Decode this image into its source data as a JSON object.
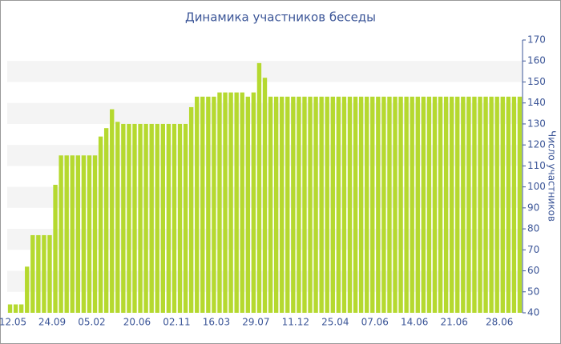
{
  "chart_data": {
    "type": "bar",
    "title": "Динамика участников беседы",
    "y_axis_label": "Число участников",
    "color": "#b5d92f",
    "band_color": "#f4f4f4",
    "ylim": [
      40,
      170
    ],
    "yticks": [
      40,
      50,
      60,
      70,
      80,
      90,
      100,
      110,
      120,
      130,
      140,
      150,
      160,
      170
    ],
    "categories": [
      "12.05",
      null,
      null,
      null,
      null,
      null,
      null,
      "24.09",
      null,
      null,
      null,
      null,
      null,
      null,
      "05.02",
      null,
      null,
      null,
      null,
      null,
      null,
      null,
      "20.06",
      null,
      null,
      null,
      null,
      null,
      null,
      "02.11",
      null,
      null,
      null,
      null,
      null,
      null,
      "16.03",
      null,
      null,
      null,
      null,
      null,
      null,
      "29.07",
      null,
      null,
      null,
      null,
      null,
      null,
      "11.12",
      null,
      null,
      null,
      null,
      null,
      null,
      "25.04",
      null,
      null,
      null,
      null,
      null,
      null,
      "07.06",
      null,
      null,
      null,
      null,
      null,
      null,
      "14.06",
      null,
      null,
      null,
      null,
      null,
      null,
      "21.06",
      null,
      null,
      null,
      null,
      null,
      null,
      null,
      "28.06",
      null,
      null,
      null,
      null
    ],
    "values": [
      44,
      44,
      44,
      62,
      77,
      77,
      77,
      77,
      101,
      115,
      115,
      115,
      115,
      115,
      115,
      115,
      124,
      128,
      137,
      131,
      130,
      130,
      130,
      130,
      130,
      130,
      130,
      130,
      130,
      130,
      130,
      130,
      138,
      143,
      143,
      143,
      143,
      145,
      145,
      145,
      145,
      145,
      143,
      145,
      159,
      152,
      143,
      143,
      143,
      143,
      143,
      143,
      143,
      143,
      143,
      143,
      143,
      143,
      143,
      143,
      143,
      143,
      143,
      143,
      143,
      143,
      143,
      143,
      143,
      143,
      143,
      143,
      143,
      143,
      143,
      143,
      143,
      143,
      143,
      143,
      143,
      143,
      143,
      143,
      143,
      143,
      143,
      143,
      143,
      143,
      143
    ]
  }
}
